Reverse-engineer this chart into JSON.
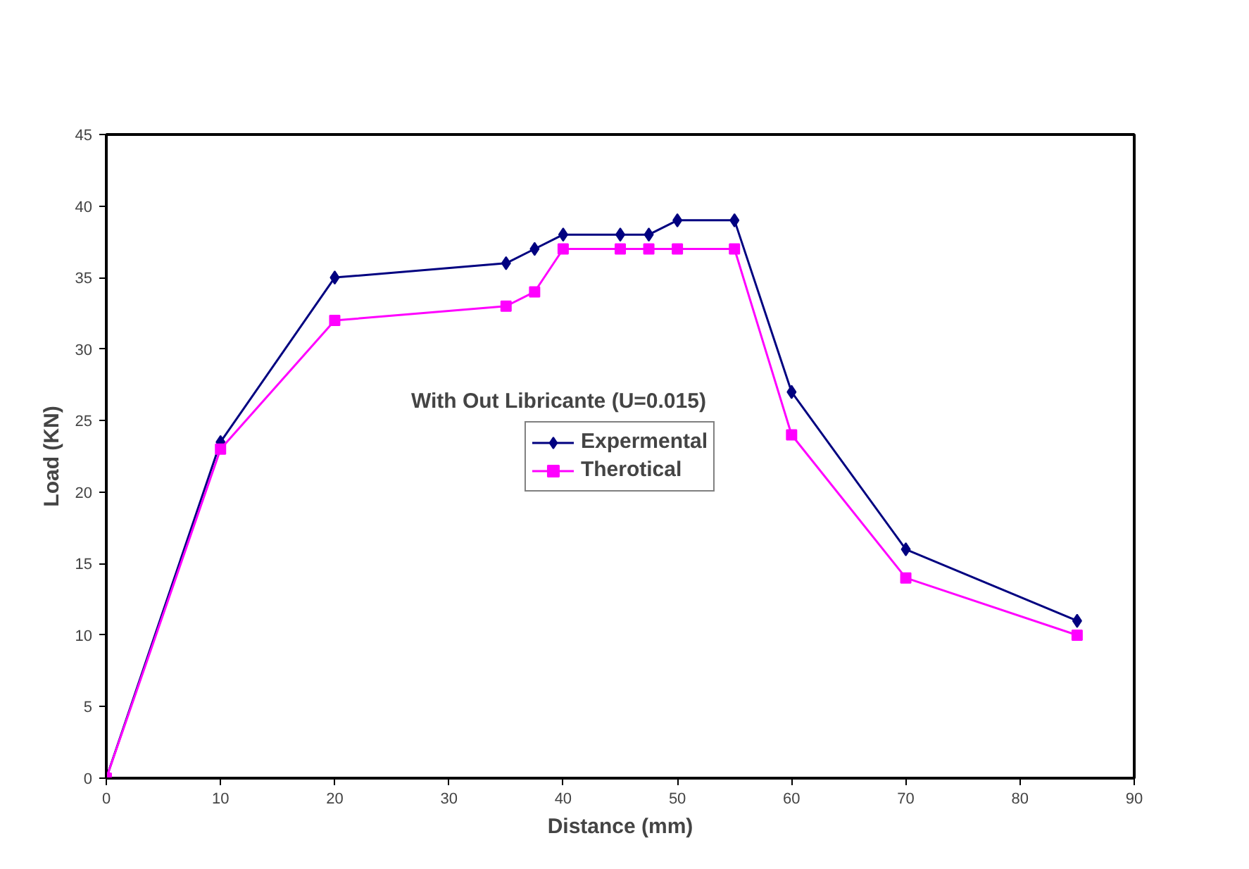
{
  "chart_data": {
    "type": "line",
    "title": "With Out Libricante (U=0.015)",
    "xlabel": "Distance (mm)",
    "ylabel": "Load (KN)",
    "x": [
      0,
      10,
      20,
      35,
      37.5,
      40,
      45,
      47.5,
      50,
      55,
      60,
      70,
      85
    ],
    "series": [
      {
        "name": "Expermental",
        "color": "#000080",
        "marker": "diamond",
        "values": [
          0,
          23.5,
          35,
          36,
          37,
          38,
          38,
          38,
          39,
          39,
          27,
          16,
          11
        ]
      },
      {
        "name": "Therotical",
        "color": "#ff00ff",
        "marker": "square",
        "values": [
          0,
          23,
          32,
          33,
          34,
          37,
          37,
          37,
          37,
          37,
          24,
          14,
          10
        ]
      }
    ],
    "xlim": [
      0,
      90
    ],
    "xticks": [
      0,
      10,
      20,
      30,
      40,
      50,
      60,
      70,
      80,
      90
    ],
    "ylim": [
      0,
      45
    ],
    "yticks": [
      0,
      5,
      10,
      15,
      20,
      25,
      30,
      35,
      40,
      45
    ],
    "grid": false,
    "legend": "center",
    "line_style": "solid"
  }
}
